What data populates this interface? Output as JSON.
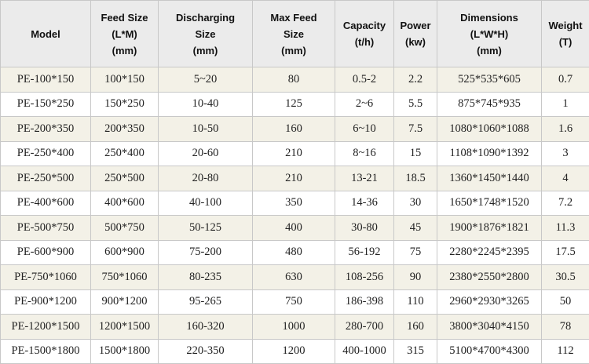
{
  "table": {
    "headers": [
      [
        "Model"
      ],
      [
        "Feed Size",
        "(L*M)",
        "(mm)"
      ],
      [
        "Discharging",
        "Size",
        "(mm)"
      ],
      [
        "Max Feed",
        "Size",
        "(mm)"
      ],
      [
        "Capacity",
        "(t/h)"
      ],
      [
        "Power",
        "(kw)"
      ],
      [
        "Dimensions",
        "(L*W*H)",
        "(mm)"
      ],
      [
        "Weight",
        "(T)"
      ]
    ],
    "rows": [
      [
        "PE-100*150",
        "100*150",
        "5~20",
        "80",
        "0.5-2",
        "2.2",
        "525*535*605",
        "0.7"
      ],
      [
        "PE-150*250",
        "150*250",
        "10-40",
        "125",
        "2~6",
        "5.5",
        "875*745*935",
        "1"
      ],
      [
        "PE-200*350",
        "200*350",
        "10-50",
        "160",
        "6~10",
        "7.5",
        "1080*1060*1088",
        "1.6"
      ],
      [
        "PE-250*400",
        "250*400",
        "20-60",
        "210",
        "8~16",
        "15",
        "1108*1090*1392",
        "3"
      ],
      [
        "PE-250*500",
        "250*500",
        "20-80",
        "210",
        "13-21",
        "18.5",
        "1360*1450*1440",
        "4"
      ],
      [
        "PE-400*600",
        "400*600",
        "40-100",
        "350",
        "14-36",
        "30",
        "1650*1748*1520",
        "7.2"
      ],
      [
        "PE-500*750",
        "500*750",
        "50-125",
        "400",
        "30-80",
        "45",
        "1900*1876*1821",
        "11.3"
      ],
      [
        "PE-600*900",
        "600*900",
        "75-200",
        "480",
        "56-192",
        "75",
        "2280*2245*2395",
        "17.5"
      ],
      [
        "PE-750*1060",
        "750*1060",
        "80-235",
        "630",
        "108-256",
        "90",
        "2380*2550*2800",
        "30.5"
      ],
      [
        "PE-900*1200",
        "900*1200",
        "95-265",
        "750",
        "186-398",
        "110",
        "2960*2930*3265",
        "50"
      ],
      [
        "PE-1200*1500",
        "1200*1500",
        "160-320",
        "1000",
        "280-700",
        "160",
        "3800*3040*4150",
        "78"
      ],
      [
        "PE-1500*1800",
        "1500*1800",
        "220-350",
        "1200",
        "400-1000",
        "315",
        "5100*4700*4300",
        "112"
      ]
    ]
  }
}
